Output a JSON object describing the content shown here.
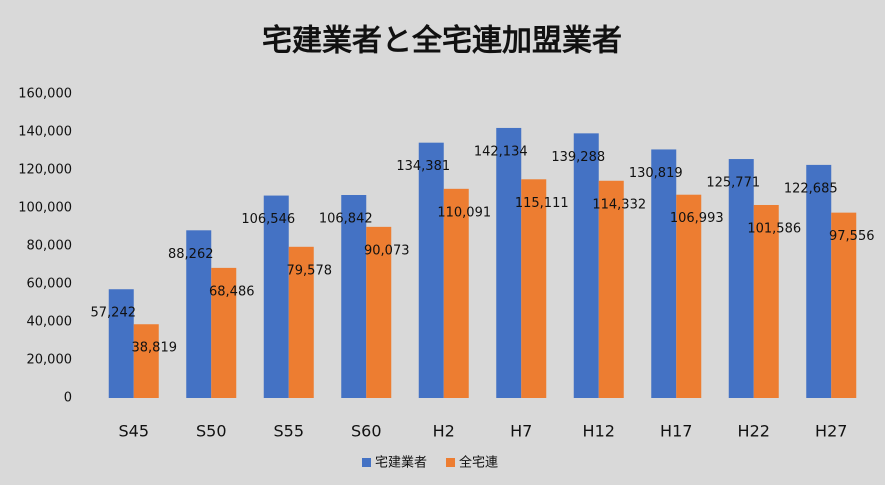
{
  "chart_data": {
    "type": "bar",
    "title": "宅建業者と全宅連加盟業者",
    "categories": [
      "S45",
      "S50",
      "S55",
      "S60",
      "H2",
      "H7",
      "H12",
      "H17",
      "H22",
      "H27"
    ],
    "series": [
      {
        "name": "宅建業者",
        "color": "#4472c4",
        "values": [
          57242,
          88262,
          106546,
          106842,
          134381,
          142134,
          139288,
          130819,
          125771,
          122685
        ],
        "value_labels": [
          "57,242",
          "88,262",
          "106,546",
          "106,842",
          "134,381",
          "142,134",
          "139,288",
          "130,819",
          "125,771",
          "122,685"
        ]
      },
      {
        "name": "全宅連",
        "color": "#ed7d31",
        "values": [
          38819,
          68486,
          79578,
          90073,
          110091,
          115111,
          114332,
          106993,
          101586,
          97556
        ],
        "value_labels": [
          "38,819",
          "68,486",
          "79,578",
          "90,073",
          "110,091",
          "115,111",
          "114,332",
          "106,993",
          "101,586",
          "97,556"
        ]
      }
    ],
    "ylim": [
      0,
      160000
    ],
    "yticks": [
      0,
      {
        "value": 20000,
        "label": "20,000"
      },
      {
        "value": 40000,
        "label": "40,000"
      },
      {
        "value": 60000,
        "label": "60,000"
      },
      {
        "value": 80000,
        "label": "80,000"
      },
      {
        "value": 100000,
        "label": "100,000"
      },
      {
        "value": 120000,
        "label": "120,000"
      },
      {
        "value": 140000,
        "label": "140,000"
      },
      {
        "value": 160000,
        "label": "160,000"
      }
    ],
    "grid": false,
    "legend": "bottom"
  }
}
